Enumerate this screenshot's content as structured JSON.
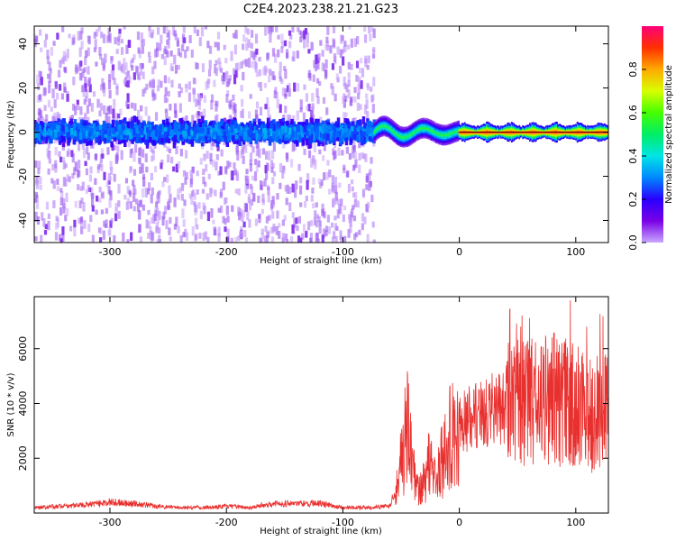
{
  "title": "C2E4.2023.238.21.21.G23",
  "chart_data": [
    {
      "type": "heatmap",
      "xlabel": "Height of straight line (km)",
      "ylabel": "Frequency (Hz)",
      "xlim": [
        -365,
        128
      ],
      "ylim": [
        -50,
        48
      ],
      "xticks": [
        -300,
        -200,
        -100,
        0,
        100
      ],
      "yticks": [
        -40,
        -20,
        0,
        20,
        40
      ],
      "colorbar": {
        "label": "Normalized spectral amplitude",
        "range": [
          0,
          1
        ],
        "ticks": [
          "0.0",
          "0.2",
          "0.4",
          "0.6",
          "0.8"
        ],
        "colormap": "rainbow (purple to red)"
      },
      "features": [
        {
          "x_range": [
            -365,
            -73
          ],
          "description": "diffuse purple speckle across full frequency range, dense blue band near 0 Hz",
          "peak_amplitude": 0.35
        },
        {
          "x_range": [
            -73,
            0
          ],
          "description": "tight oscillating signal near 0 Hz, amplitude cyan-green",
          "peak_amplitude": 0.55
        },
        {
          "x_range": [
            0,
            128
          ],
          "description": "steady line at ~0 Hz with red/orange core",
          "peak_amplitude": 0.95
        }
      ]
    },
    {
      "type": "line",
      "xlabel": "Height of straight line (km)",
      "ylabel": "SNR (10 * v/v)",
      "xlim": [
        -365,
        128
      ],
      "ylim": [
        0,
        7900
      ],
      "xticks": [
        -300,
        -200,
        -100,
        0,
        100
      ],
      "yticks": [
        2000,
        4000,
        6000
      ],
      "color": "#e8312f",
      "series": [
        {
          "x": [
            -365,
            -340,
            -320,
            -300,
            -280,
            -260,
            -240,
            -220,
            -200,
            -180,
            -160,
            -140,
            -120,
            -100,
            -80,
            -60,
            -55,
            -50,
            -45,
            -40,
            -35,
            -30,
            -25,
            -20,
            -15,
            -10,
            -5,
            0,
            10,
            20,
            30,
            40,
            50,
            60,
            70,
            80,
            90,
            100,
            110,
            120,
            128
          ],
          "y": [
            200,
            250,
            300,
            400,
            350,
            250,
            200,
            200,
            250,
            200,
            350,
            350,
            350,
            200,
            200,
            250,
            800,
            2000,
            3200,
            1500,
            800,
            1200,
            2200,
            1000,
            2000,
            2500,
            3000,
            3200,
            3500,
            3700,
            3800,
            3800,
            3900,
            4000,
            4100,
            4200,
            4000,
            3900,
            3700,
            3600,
            4000
          ]
        }
      ]
    }
  ]
}
